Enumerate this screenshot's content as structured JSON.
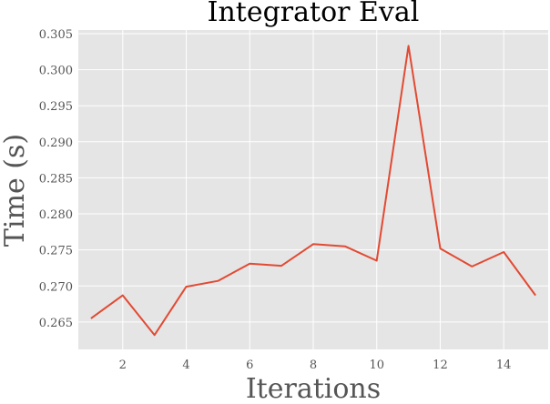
{
  "chart_data": {
    "type": "line",
    "title": "Integrator Eval",
    "xlabel": "Iterations",
    "ylabel": "Time (s)",
    "xlim": [
      0.6,
      15.4
    ],
    "ylim": [
      0.2612,
      0.3055
    ],
    "grid": true,
    "colors": {
      "background": "#e5e5e5",
      "grid": "#ffffff",
      "line": "#e24a33"
    },
    "x_ticks": [
      2,
      4,
      6,
      8,
      10,
      12,
      14
    ],
    "x_tick_labels": [
      "2",
      "4",
      "6",
      "8",
      "10",
      "12",
      "14"
    ],
    "y_ticks": [
      0.265,
      0.27,
      0.275,
      0.28,
      0.285,
      0.29,
      0.295,
      0.3,
      0.305
    ],
    "y_tick_labels": [
      "0.265",
      "0.270",
      "0.275",
      "0.280",
      "0.285",
      "0.290",
      "0.295",
      "0.300",
      "0.305"
    ],
    "x": [
      1,
      2,
      3,
      4,
      5,
      6,
      7,
      8,
      9,
      10,
      11,
      12,
      13,
      14,
      15
    ],
    "y": [
      0.2655,
      0.2687,
      0.2632,
      0.2699,
      0.2707,
      0.2731,
      0.2728,
      0.2758,
      0.2755,
      0.2735,
      0.3033,
      0.2752,
      0.2727,
      0.2747,
      0.2687
    ]
  }
}
